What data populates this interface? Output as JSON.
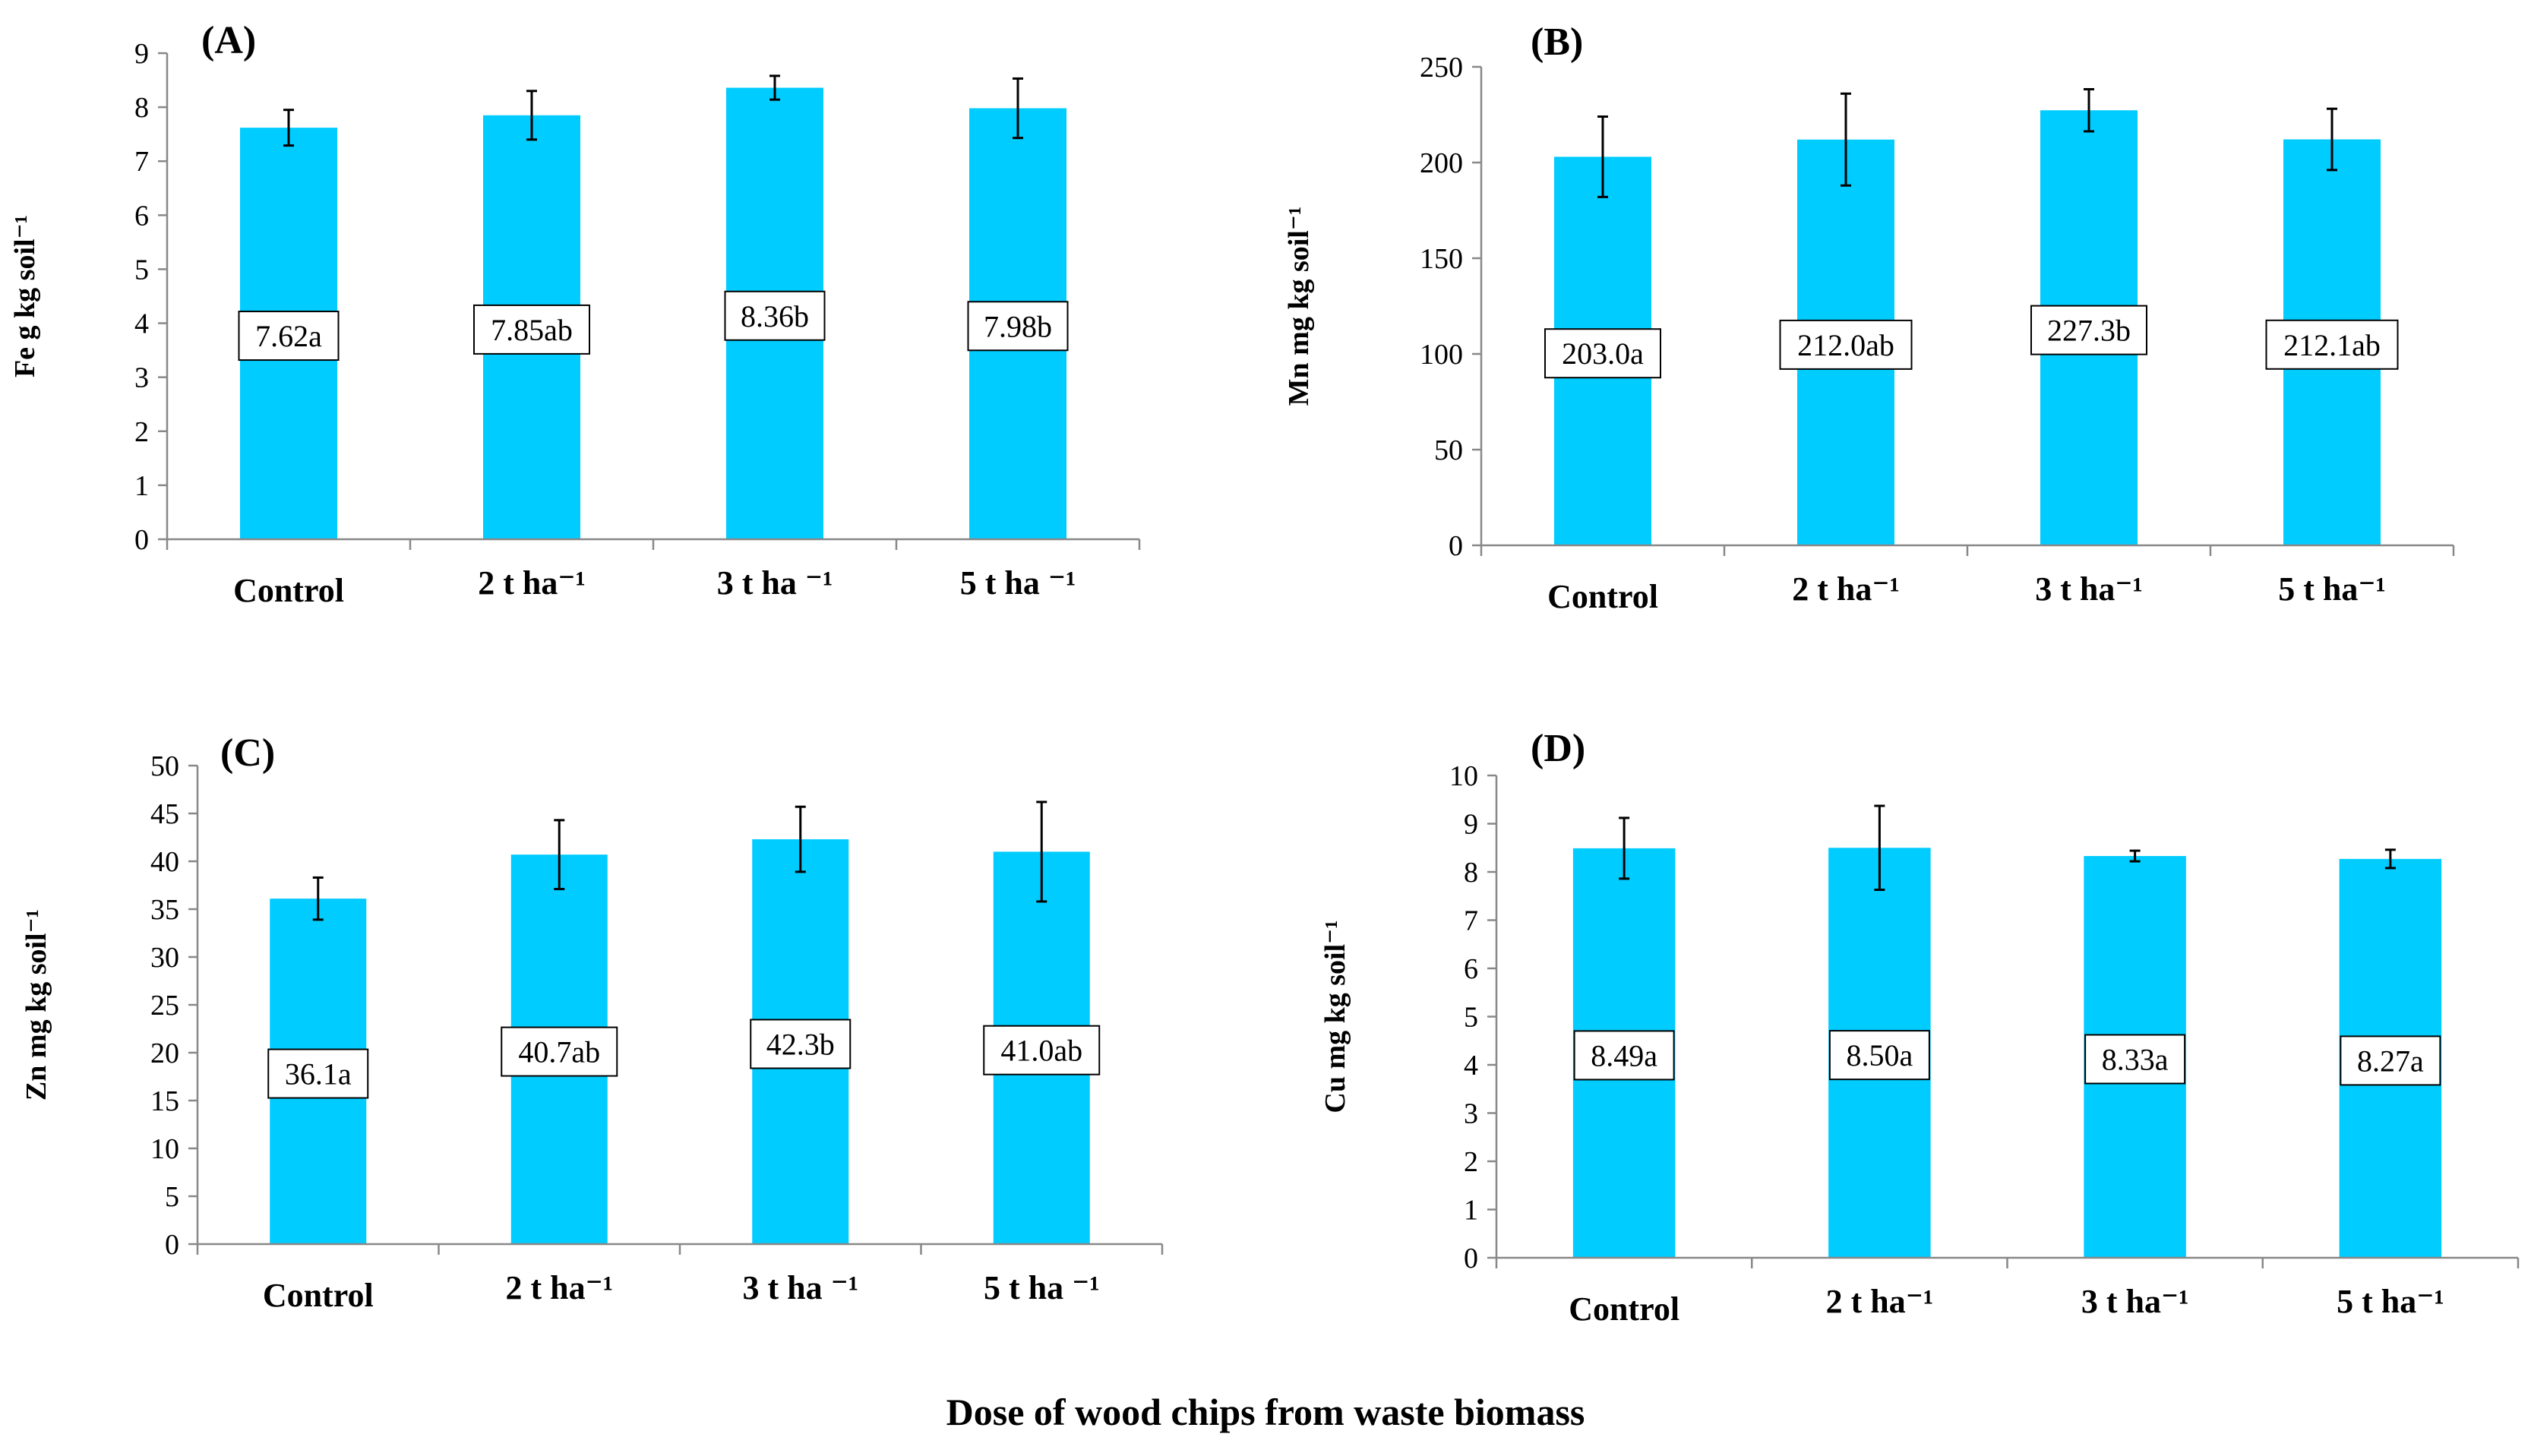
{
  "figure": {
    "common_xlabel": "Dose of wood chips from waste biomass",
    "bar_color": "#00CCFF"
  },
  "chart_data": [
    {
      "type": "bar",
      "panel_label": "(A)",
      "ylabel": "Fe g kg soil⁻¹",
      "categories": [
        "Control",
        "2 t ha⁻¹",
        "3 t ha ⁻¹",
        "5 t ha ⁻¹"
      ],
      "values": [
        7.62,
        7.85,
        8.36,
        7.98
      ],
      "errors": [
        0.33,
        0.45,
        0.22,
        0.55
      ],
      "data_labels": [
        "7.62a",
        "7.85ab",
        "8.36b",
        "7.98b"
      ],
      "ylim": [
        0,
        9
      ],
      "yticks": [
        "0",
        "1",
        "2",
        "3",
        "4",
        "5",
        "6",
        "7",
        "8",
        "9"
      ]
    },
    {
      "type": "bar",
      "panel_label": "(B)",
      "ylabel": "Mn mg kg soil⁻¹",
      "categories": [
        "Control",
        "2 t ha⁻¹",
        "3 t ha⁻¹",
        "5 t ha⁻¹"
      ],
      "values": [
        203.0,
        212.0,
        227.3,
        212.1
      ],
      "errors": [
        21,
        24,
        11,
        16
      ],
      "data_labels": [
        "203.0a",
        "212.0ab",
        "227.3b",
        "212.1ab"
      ],
      "ylim": [
        0,
        250
      ],
      "yticks": [
        "0",
        "50",
        "100",
        "150",
        "200",
        "250"
      ]
    },
    {
      "type": "bar",
      "panel_label": "(C)",
      "ylabel": "Zn mg kg soil⁻¹",
      "categories": [
        "Control",
        "2 t ha⁻¹",
        "3 t ha ⁻¹",
        "5 t ha ⁻¹"
      ],
      "values": [
        36.1,
        40.7,
        42.3,
        41.0
      ],
      "errors": [
        2.2,
        3.6,
        3.4,
        5.2
      ],
      "data_labels": [
        "36.1a",
        "40.7ab",
        "42.3b",
        "41.0ab"
      ],
      "ylim": [
        0,
        50
      ],
      "yticks": [
        "0",
        "5",
        "10",
        "15",
        "20",
        "25",
        "30",
        "35",
        "40",
        "45",
        "50"
      ]
    },
    {
      "type": "bar",
      "panel_label": "(D)",
      "ylabel": "Cu mg kg soil⁻¹",
      "categories": [
        "Control",
        "2 t ha⁻¹",
        "3 t ha⁻¹",
        "5 t ha⁻¹"
      ],
      "values": [
        8.49,
        8.5,
        8.33,
        8.27
      ],
      "errors": [
        0.63,
        0.87,
        0.11,
        0.19
      ],
      "data_labels": [
        "8.49a",
        "8.50a",
        "8.33a",
        "8.27a"
      ],
      "ylim": [
        0,
        10
      ],
      "yticks": [
        "0",
        "1",
        "2",
        "3",
        "4",
        "5",
        "6",
        "7",
        "8",
        "9",
        "10"
      ]
    }
  ]
}
